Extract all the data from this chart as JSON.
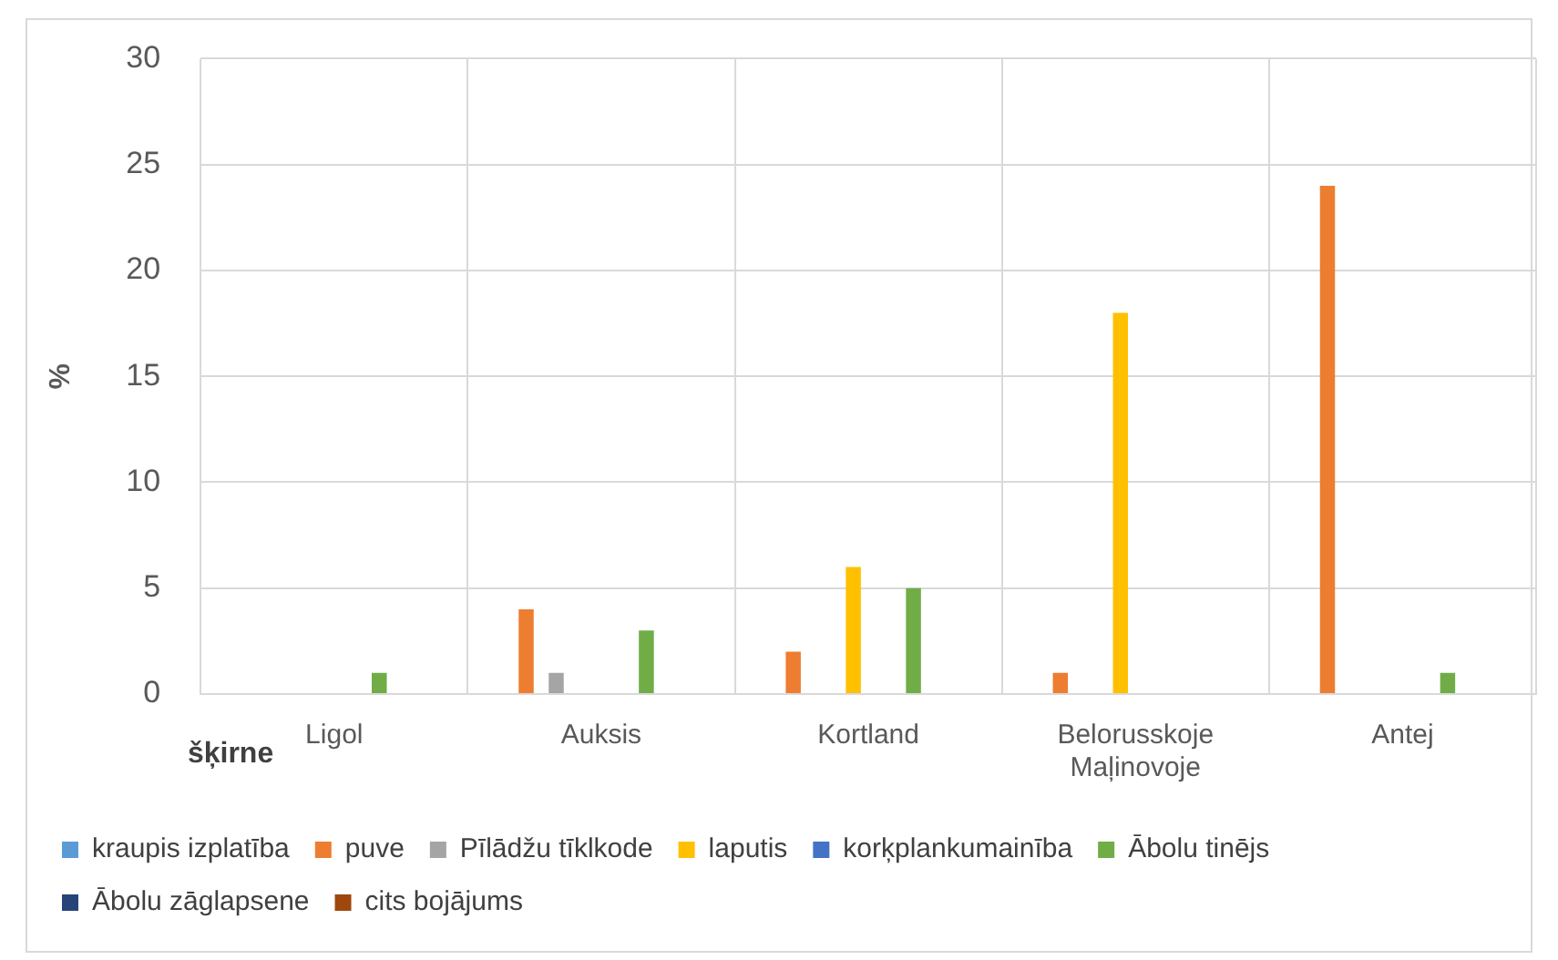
{
  "chart_data": {
    "type": "bar",
    "ylabel": "%",
    "xlabel": "šķirne",
    "categories": [
      "Ligol",
      "Auksis",
      "Kortland",
      "Belorusskoje Maļinovoje",
      "Antej"
    ],
    "series": [
      {
        "name": "kraupis izplatība",
        "color": "#5b9bd5",
        "values": [
          0,
          0,
          0,
          0,
          0
        ]
      },
      {
        "name": "puve",
        "color": "#ed7d31",
        "values": [
          0,
          4,
          2,
          1,
          24
        ]
      },
      {
        "name": "Pīlādžu tīklkode",
        "color": "#a5a5a5",
        "values": [
          0,
          1,
          0,
          0,
          0
        ]
      },
      {
        "name": "laputis",
        "color": "#ffc000",
        "values": [
          0,
          0,
          6,
          18,
          0
        ]
      },
      {
        "name": "korķplankumainība",
        "color": "#4472c4",
        "values": [
          0,
          0,
          0,
          0,
          0
        ]
      },
      {
        "name": "Ābolu tinējs",
        "color": "#70ad47",
        "values": [
          1,
          3,
          5,
          0,
          1
        ]
      },
      {
        "name": "Ābolu zāglapsene",
        "color": "#264478",
        "values": [
          0,
          0,
          0,
          0,
          0
        ]
      },
      {
        "name": "cits bojājums",
        "color": "#9e480e",
        "values": [
          0,
          0,
          0,
          0,
          0
        ]
      }
    ],
    "ylim": [
      0,
      30
    ],
    "yticks": [
      0,
      5,
      10,
      15,
      20,
      25,
      30
    ],
    "grid": true,
    "legend": "bottom"
  }
}
